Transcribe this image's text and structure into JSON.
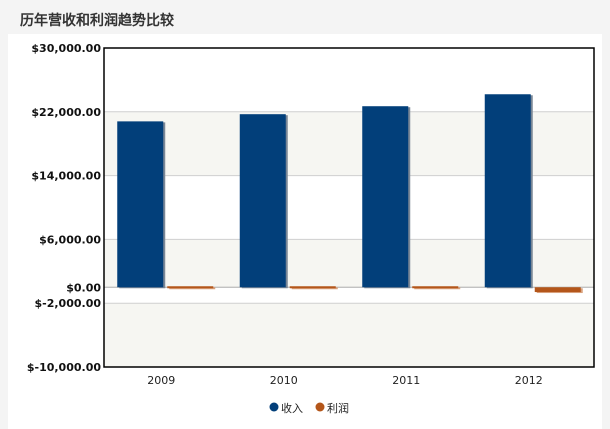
{
  "title": "历年营收和利润趋势比较",
  "colors": {
    "revenue": "#023f7a",
    "revenue_shadow": "#7a8796",
    "profit": "#b4561a",
    "profit_shadow": "#d9a27e",
    "grid": "#cfcfcf",
    "band": "#f6f6f2",
    "axis": "#000000"
  },
  "chart_data": {
    "type": "bar",
    "categories": [
      "2009",
      "2010",
      "2011",
      "2012"
    ],
    "series": [
      {
        "name": "收入",
        "values": [
          20800,
          21700,
          22700,
          24200
        ]
      },
      {
        "name": "利润",
        "values": [
          0,
          250,
          180,
          -600
        ]
      }
    ],
    "ylim": [
      -10000,
      30000
    ],
    "yticks": [
      30000,
      22000,
      14000,
      6000,
      0,
      -2000,
      -10000
    ],
    "ytick_labels": [
      "$30,000.00",
      "$22,000.00",
      "$14,000.00",
      "$6,000.00",
      "$0.00",
      "$-2,000.00",
      "$-10,000.00"
    ],
    "grid": true,
    "legend_position": "bottom-center",
    "xlabel": "",
    "ylabel": ""
  }
}
